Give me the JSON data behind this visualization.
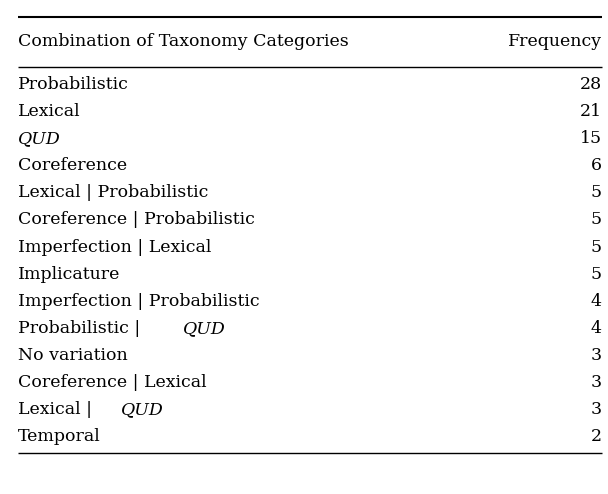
{
  "col1_header": "Combination of Taxonomy Categories",
  "col2_header": "Frequency",
  "rows": [
    [
      "Probabilistic",
      "28"
    ],
    [
      "Lexical",
      "21"
    ],
    [
      "QUD",
      "15"
    ],
    [
      "Coreference",
      "6"
    ],
    [
      "Lexical | Probabilistic",
      "5"
    ],
    [
      "Coreference | Probabilistic",
      "5"
    ],
    [
      "Imperfection | Lexical",
      "5"
    ],
    [
      "Implicature",
      "5"
    ],
    [
      "Imperfection | Probabilistic",
      "4"
    ],
    [
      "Probabilistic | QUD",
      "4"
    ],
    [
      "No variation",
      "3"
    ],
    [
      "Coreference | Lexical",
      "3"
    ],
    [
      "Lexical | QUD",
      "3"
    ],
    [
      "Temporal",
      "2"
    ]
  ],
  "italic_keywords": [
    "QUD"
  ],
  "bg_color": "#ffffff",
  "text_color": "#000000",
  "header_fontsize": 12.5,
  "row_fontsize": 12.5,
  "figsize": [
    6.08,
    4.94
  ],
  "dpi": 100
}
